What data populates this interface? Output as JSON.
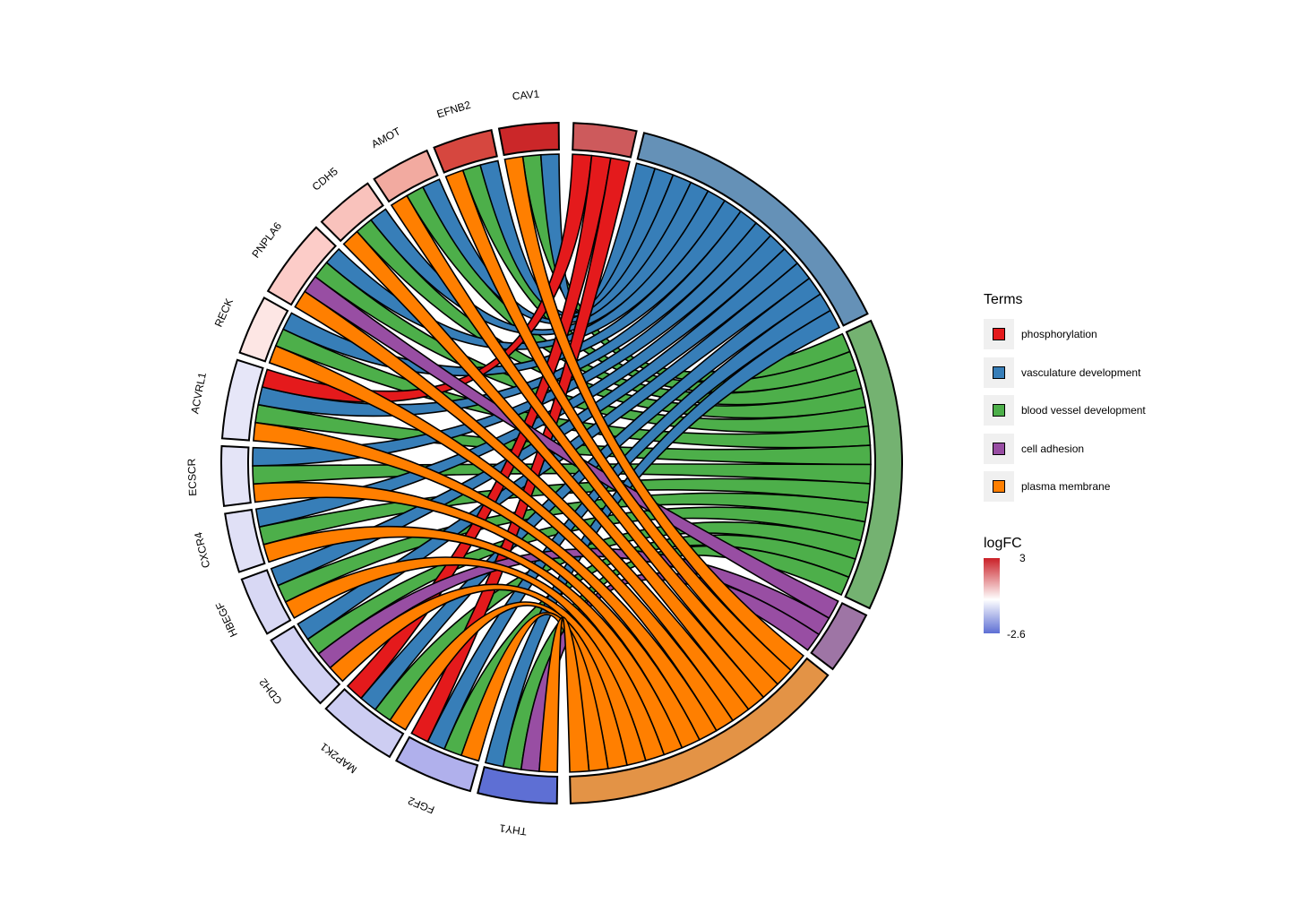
{
  "chart_data": {
    "type": "chord",
    "genes": [
      {
        "name": "CAV1",
        "logFC": 2.9,
        "color": "#cb2729"
      },
      {
        "name": "EFNB2",
        "logFC": 2.6,
        "color": "#d6473f"
      },
      {
        "name": "AMOT",
        "logFC": 1.3,
        "color": "#f2aaa0"
      },
      {
        "name": "CDH5",
        "logFC": 0.9,
        "color": "#f9c2bc"
      },
      {
        "name": "PNPLA6",
        "logFC": 0.7,
        "color": "#fcccc8"
      },
      {
        "name": "RECK",
        "logFC": 0.2,
        "color": "#fde6e4"
      },
      {
        "name": "ACVRL1",
        "logFC": -0.6,
        "color": "#e6e6f8"
      },
      {
        "name": "ECSCR",
        "logFC": -0.6,
        "color": "#e4e4f7"
      },
      {
        "name": "CXCR4",
        "logFC": -0.7,
        "color": "#e0e0f6"
      },
      {
        "name": "HBEGF",
        "logFC": -0.9,
        "color": "#d8d8f4"
      },
      {
        "name": "CDH2",
        "logFC": -1.0,
        "color": "#d2d2f3"
      },
      {
        "name": "MAP2K1",
        "logFC": -1.1,
        "color": "#cdcdf2"
      },
      {
        "name": "FGF2",
        "logFC": -1.6,
        "color": "#b0b0ec"
      },
      {
        "name": "THY1",
        "logFC": -2.6,
        "color": "#5e6fd4"
      }
    ],
    "terms": [
      {
        "name": "phosphorylation",
        "color": "#e41a1c",
        "segment_color": "#cd5a5c"
      },
      {
        "name": "vasculature development",
        "color": "#377eb8",
        "segment_color": "#6591b7"
      },
      {
        "name": "blood vessel development",
        "color": "#4daf4a",
        "segment_color": "#74b271"
      },
      {
        "name": "cell adhesion",
        "color": "#984ea3",
        "segment_color": "#9e75a5"
      },
      {
        "name": "plasma membrane",
        "color": "#ff7f00",
        "segment_color": "#e39346"
      }
    ],
    "links": {
      "CAV1": [
        "vasculature development",
        "blood vessel development",
        "plasma membrane"
      ],
      "EFNB2": [
        "vasculature development",
        "blood vessel development",
        "plasma membrane"
      ],
      "AMOT": [
        "vasculature development",
        "blood vessel development",
        "plasma membrane"
      ],
      "CDH5": [
        "vasculature development",
        "blood vessel development",
        "plasma membrane"
      ],
      "PNPLA6": [
        "vasculature development",
        "blood vessel development",
        "cell adhesion",
        "plasma membrane"
      ],
      "RECK": [
        "vasculature development",
        "blood vessel development",
        "plasma membrane"
      ],
      "ACVRL1": [
        "phosphorylation",
        "vasculature development",
        "blood vessel development",
        "plasma membrane"
      ],
      "ECSCR": [
        "vasculature development",
        "blood vessel development",
        "plasma membrane"
      ],
      "CXCR4": [
        "vasculature development",
        "blood vessel development",
        "plasma membrane"
      ],
      "HBEGF": [
        "vasculature development",
        "blood vessel development",
        "plasma membrane"
      ],
      "CDH2": [
        "vasculature development",
        "blood vessel development",
        "cell adhesion",
        "plasma membrane"
      ],
      "MAP2K1": [
        "phosphorylation",
        "vasculature development",
        "blood vessel development",
        "plasma membrane"
      ],
      "FGF2": [
        "phosphorylation",
        "vasculature development",
        "blood vessel development",
        "plasma membrane"
      ],
      "THY1": [
        "vasculature development",
        "blood vessel development",
        "cell adhesion",
        "plasma membrane"
      ]
    }
  },
  "legend": {
    "terms_title": "Terms",
    "logfc_title": "logFC",
    "logfc_max": "3",
    "logfc_min": "-2.6",
    "logfc_colors": [
      "#ca2027",
      "#ffffff",
      "#5e6fd4"
    ]
  }
}
